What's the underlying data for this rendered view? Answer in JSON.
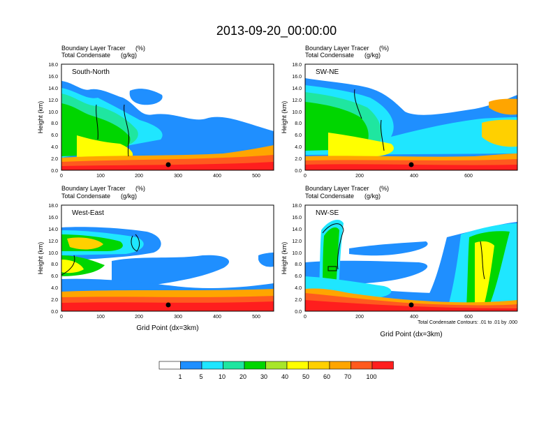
{
  "title": "2013-09-20_00:00:00",
  "footnote": "Total Condensate Contours: .01 to .01 by .000",
  "colors": {
    "levels": [
      "#ffffff",
      "#1f8fff",
      "#1fe6ff",
      "#1fe6a0",
      "#00d600",
      "#a8e62a",
      "#ffff00",
      "#ffd000",
      "#ffa500",
      "#ff5a1e",
      "#ff1e1e"
    ]
  },
  "colorbar": {
    "labels": [
      "1",
      "5",
      "10",
      "20",
      "30",
      "40",
      "50",
      "60",
      "70",
      "100"
    ]
  },
  "chart_data": [
    {
      "type": "heatmap",
      "panel": "South-North",
      "label1": "Boundary Layer Tracer",
      "unit1": "(%)",
      "label2": "Total Condensate",
      "unit2": "(g/kg)",
      "ylabel": "Height (km)",
      "xlabel": "",
      "xlim": [
        0,
        545
      ],
      "ylim": [
        0,
        18
      ],
      "xticks": [
        0,
        100,
        200,
        300,
        400,
        500
      ],
      "yticks": [
        "0.0",
        "2.0",
        "4.0",
        "6.0",
        "8.0",
        "10.0",
        "12.0",
        "14.0",
        "16.0",
        "18.0"
      ],
      "marker": {
        "x": 275,
        "y": 1.0
      }
    },
    {
      "type": "heatmap",
      "panel": "SW-NE",
      "label1": "Boundary Layer Tracer",
      "unit1": "(%)",
      "label2": "Total Condensate",
      "unit2": "(g/kg)",
      "ylabel": "Height (km)",
      "xlabel": "",
      "xlim": [
        0,
        780
      ],
      "ylim": [
        0,
        18
      ],
      "xticks": [
        0,
        200,
        400,
        600
      ],
      "yticks": [
        "0.0",
        "2.0",
        "4.0",
        "6.0",
        "8.0",
        "10.0",
        "12.0",
        "14.0",
        "16.0",
        "18.0"
      ],
      "marker": {
        "x": 390,
        "y": 1.0
      }
    },
    {
      "type": "heatmap",
      "panel": "West-East",
      "label1": "Boundary Layer Tracer",
      "unit1": "(%)",
      "label2": "Total Condensate",
      "unit2": "(g/kg)",
      "ylabel": "Height (km)",
      "xlabel": "Grid Point (dx=3km)",
      "xlim": [
        0,
        545
      ],
      "ylim": [
        0,
        18
      ],
      "xticks": [
        0,
        100,
        200,
        300,
        400,
        500
      ],
      "yticks": [
        "0.0",
        "2.0",
        "4.0",
        "6.0",
        "8.0",
        "10.0",
        "12.0",
        "14.0",
        "16.0",
        "18.0"
      ],
      "marker": {
        "x": 275,
        "y": 1.0
      }
    },
    {
      "type": "heatmap",
      "panel": "NW-SE",
      "label1": "Boundary Layer Tracer",
      "unit1": "(%)",
      "label2": "Total Condensate",
      "unit2": "(g/kg)",
      "ylabel": "Height (km)",
      "xlabel": "Grid Point (dx=3km)",
      "xlim": [
        0,
        780
      ],
      "ylim": [
        0,
        18
      ],
      "xticks": [
        0,
        200,
        400,
        600
      ],
      "yticks": [
        "0.0",
        "2.0",
        "4.0",
        "6.0",
        "8.0",
        "10.0",
        "12.0",
        "14.0",
        "16.0",
        "18.0"
      ],
      "marker": {
        "x": 390,
        "y": 1.0
      }
    }
  ]
}
